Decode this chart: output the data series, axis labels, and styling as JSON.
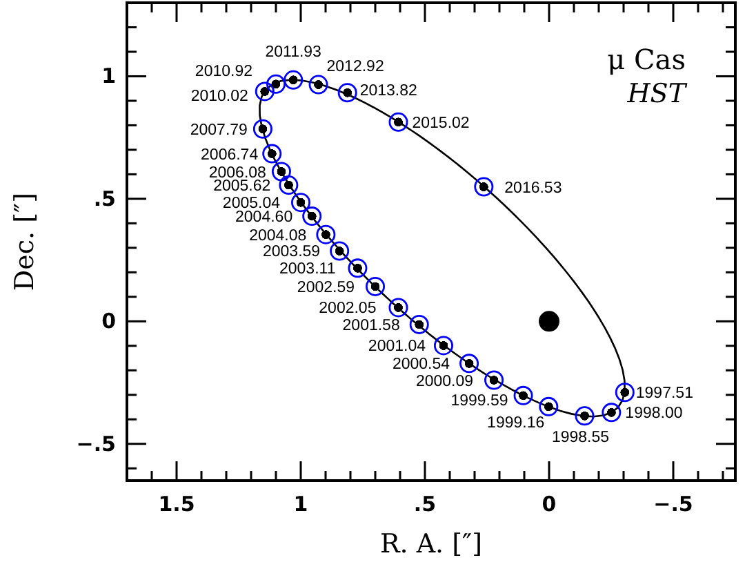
{
  "chart_data": {
    "type": "scatter",
    "title": "μ Cas",
    "subtitle": "HST",
    "xlabel": "R. A. [″]",
    "ylabel": "Dec. [″]",
    "xlim": [
      1.7,
      -0.75
    ],
    "ylim": [
      -0.65,
      1.3
    ],
    "xticks": [
      {
        "value": 1.7,
        "label": null
      },
      {
        "value": 1.6,
        "label": null
      },
      {
        "value": 1.5,
        "label": "1.5"
      },
      {
        "value": 1.4,
        "label": null
      },
      {
        "value": 1.3,
        "label": null
      },
      {
        "value": 1.2,
        "label": null
      },
      {
        "value": 1.1,
        "label": null
      },
      1,
      {
        "value": 0.9,
        "label": null
      },
      {
        "value": 0.8,
        "label": null
      },
      {
        "value": 0.7,
        "label": null
      },
      {
        "value": 0.6,
        "label": null
      },
      {
        "value": 0.5,
        "label": ".5"
      },
      {
        "value": 0.4,
        "label": null
      },
      {
        "value": 0.3,
        "label": null
      },
      {
        "value": 0.2,
        "label": null
      },
      {
        "value": 0.1,
        "label": null
      },
      0,
      {
        "value": -0.1,
        "label": null
      },
      {
        "value": -0.2,
        "label": null
      },
      {
        "value": -0.3,
        "label": null
      },
      {
        "value": -0.4,
        "label": null
      },
      {
        "value": -0.5,
        "label": "−.5"
      },
      {
        "value": -0.6,
        "label": null
      },
      {
        "value": -0.7,
        "label": null
      }
    ],
    "yticks": [
      {
        "value": -0.6,
        "label": null
      },
      {
        "value": -0.5,
        "label": "−.5"
      },
      {
        "value": -0.4,
        "label": null
      },
      {
        "value": -0.3,
        "label": null
      },
      {
        "value": -0.2,
        "label": null
      },
      {
        "value": -0.1,
        "label": null
      },
      0,
      {
        "value": 0.1,
        "label": null
      },
      {
        "value": 0.2,
        "label": null
      },
      {
        "value": 0.3,
        "label": null
      },
      {
        "value": 0.4,
        "label": null
      },
      {
        "value": 0.5,
        "label": ".5"
      },
      {
        "value": 0.6,
        "label": null
      },
      {
        "value": 0.7,
        "label": null
      },
      {
        "value": 0.8,
        "label": null
      },
      {
        "value": 0.9,
        "label": null
      },
      1,
      {
        "value": 1.1,
        "label": null
      },
      {
        "value": 1.2,
        "label": null
      }
    ],
    "grid": false,
    "series": [
      {
        "color": "#0000ff",
        "marker": "circle",
        "x": [
          -0.305,
          -0.251,
          -0.143,
          0.002,
          0.104,
          0.222,
          0.322,
          0.425,
          0.523,
          0.607,
          0.7,
          0.771,
          0.844,
          0.899,
          0.955,
          1.0,
          1.049,
          1.078,
          1.116,
          1.153,
          1.145,
          1.1,
          1.03,
          0.929,
          0.812,
          0.607,
          0.263
        ],
        "values": [
          -0.29,
          -0.372,
          -0.386,
          -0.348,
          -0.303,
          -0.24,
          -0.172,
          -0.099,
          -0.013,
          0.056,
          0.142,
          0.217,
          0.287,
          0.354,
          0.429,
          0.485,
          0.556,
          0.611,
          0.684,
          0.785,
          0.938,
          0.968,
          0.985,
          0.966,
          0.933,
          0.813,
          0.549
        ]
      },
      {
        "color": "#000000",
        "marker": "circle",
        "x": [
          0
        ],
        "values": [
          0
        ]
      }
    ],
    "annotations": [
      {
        "text": "1997.51",
        "x": -0.305,
        "y": -0.29
      },
      {
        "text": "1998.00",
        "x": -0.251,
        "y": -0.372
      },
      {
        "text": "1998.55",
        "x": -0.143,
        "y": -0.386
      },
      {
        "text": "1999.16",
        "x": 0.002,
        "y": -0.348
      },
      {
        "text": "1999.59",
        "x": 0.104,
        "y": -0.303
      },
      {
        "text": "2000.09",
        "x": 0.222,
        "y": -0.24
      },
      {
        "text": "2000.54",
        "x": 0.322,
        "y": -0.172
      },
      {
        "text": "2001.04",
        "x": 0.425,
        "y": -0.099
      },
      {
        "text": "2001.58",
        "x": 0.523,
        "y": -0.013
      },
      {
        "text": "2002.05",
        "x": 0.607,
        "y": 0.056
      },
      {
        "text": "2002.59",
        "x": 0.7,
        "y": 0.142
      },
      {
        "text": "2003.11",
        "x": 0.771,
        "y": 0.217
      },
      {
        "text": "2003.59",
        "x": 0.844,
        "y": 0.287
      },
      {
        "text": "2004.08",
        "x": 0.899,
        "y": 0.354
      },
      {
        "text": "2004.60",
        "x": 0.955,
        "y": 0.429
      },
      {
        "text": "2005.04",
        "x": 1.0,
        "y": 0.485
      },
      {
        "text": "2005.62",
        "x": 1.049,
        "y": 0.556
      },
      {
        "text": "2006.08",
        "x": 1.078,
        "y": 0.611
      },
      {
        "text": "2006.74",
        "x": 1.116,
        "y": 0.684
      },
      {
        "text": "2007.79",
        "x": 1.153,
        "y": 0.785
      },
      {
        "text": "2010.02",
        "x": 1.145,
        "y": 0.938
      },
      {
        "text": "2010.92",
        "x": 1.1,
        "y": 0.968
      },
      {
        "text": "2011.93",
        "x": 1.03,
        "y": 0.985
      },
      {
        "text": "2012.92",
        "x": 0.929,
        "y": 0.966
      },
      {
        "text": "2013.82",
        "x": 0.812,
        "y": 0.933
      },
      {
        "text": "2015.02",
        "x": 0.607,
        "y": 0.813
      },
      {
        "text": "2016.53",
        "x": 0.263,
        "y": 0.549
      }
    ]
  }
}
